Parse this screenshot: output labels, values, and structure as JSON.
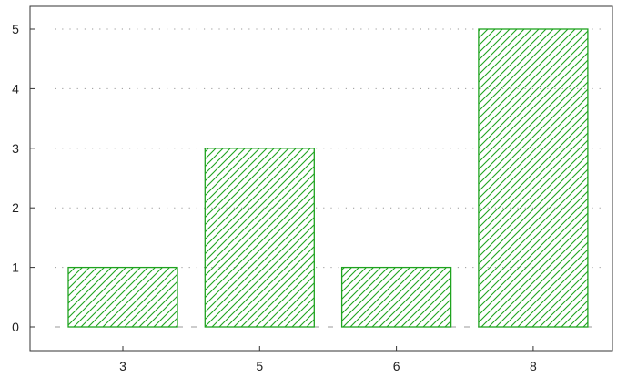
{
  "chart_data": {
    "type": "bar",
    "categories": [
      "3",
      "5",
      "6",
      "8"
    ],
    "values": [
      1,
      3,
      1,
      5
    ],
    "ylim": [
      0,
      5
    ],
    "yticks": [
      0,
      1,
      2,
      3,
      4,
      5
    ],
    "grid": "horizontal dotted",
    "bar_style": "hatched",
    "colors": {
      "bar_stroke": "#1fa31f",
      "hatch": "#1fa31f",
      "grid": "#999999",
      "axis": "#333333"
    }
  }
}
